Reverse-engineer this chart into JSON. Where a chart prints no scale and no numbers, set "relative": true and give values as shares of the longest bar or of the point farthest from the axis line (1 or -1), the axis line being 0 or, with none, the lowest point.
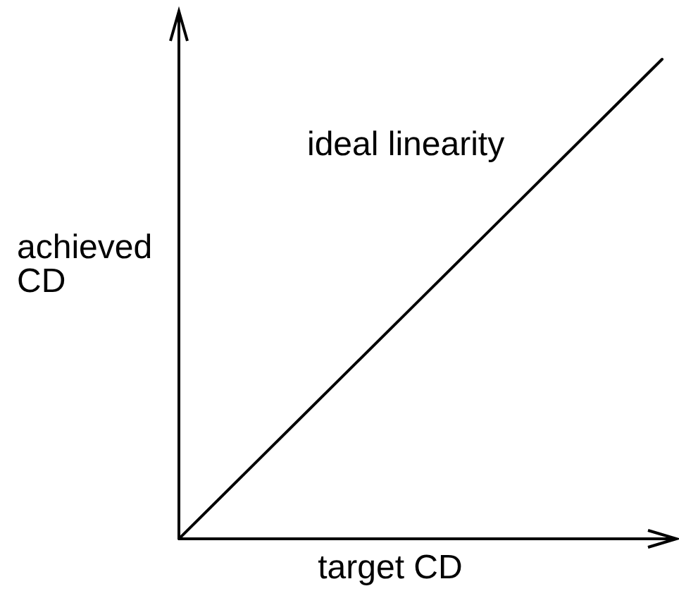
{
  "chart_data": {
    "type": "line",
    "xlabel": "target CD",
    "ylabel": "achieved CD",
    "categories": [
      null,
      null
    ],
    "series": [
      {
        "name": "ideal linearity",
        "color": "#000000",
        "values": [
          0,
          1
        ]
      }
    ],
    "relative": true
  }
}
